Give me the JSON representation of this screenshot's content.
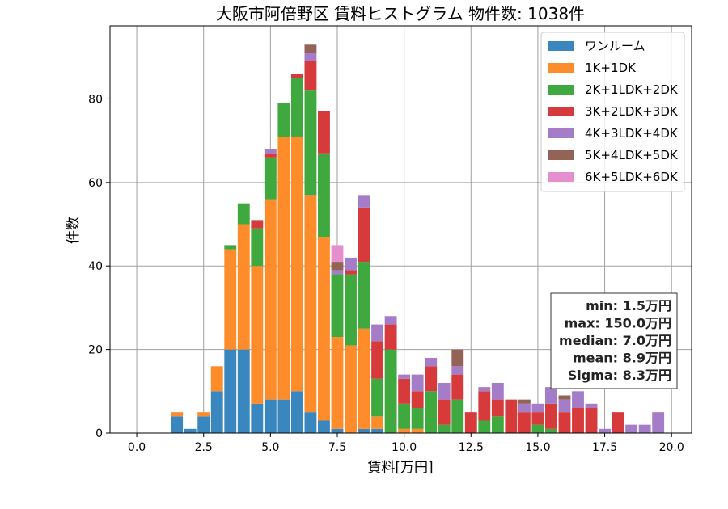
{
  "chart_data": {
    "type": "bar",
    "stacked": true,
    "title": "大阪市阿倍野区 賃料ヒストグラム 物件数: 1038件",
    "xlabel": "賃料[万円]",
    "ylabel": "件数",
    "xlim": [
      -1.0,
      20.75
    ],
    "ylim": [
      0,
      97.5
    ],
    "xticks": [
      0.0,
      2.5,
      5.0,
      7.5,
      10.0,
      12.5,
      15.0,
      17.5,
      20.0
    ],
    "xtick_labels": [
      "0.0",
      "2.5",
      "5.0",
      "7.5",
      "10.0",
      "12.5",
      "15.0",
      "17.5",
      "20.0"
    ],
    "yticks": [
      0,
      20,
      40,
      60,
      80
    ],
    "ytick_labels": [
      "0",
      "20",
      "40",
      "60",
      "80"
    ],
    "grid": true,
    "legend_position": "top-right",
    "bin_width": 0.5,
    "bar_width": 0.45,
    "x": [
      0,
      0.5,
      1,
      1.5,
      2,
      2.5,
      3,
      3.5,
      4,
      4.5,
      5,
      5.5,
      6,
      6.5,
      7,
      7.5,
      8,
      8.5,
      9,
      9.5,
      10,
      10.5,
      11,
      11.5,
      12,
      12.5,
      13,
      13.5,
      14,
      14.5,
      15,
      15.5,
      16,
      16.5,
      17,
      17.5,
      18,
      18.5,
      19,
      19.5
    ],
    "series": [
      {
        "name": "ワンルーム",
        "color": "#3a87c0",
        "values": [
          0,
          0,
          0,
          4,
          1,
          4,
          10,
          20,
          20,
          7,
          8,
          8,
          10,
          5,
          3,
          1,
          0,
          1,
          1,
          0,
          0,
          0,
          0,
          0,
          0,
          0,
          0,
          0,
          0,
          0,
          0,
          0,
          0,
          0,
          0,
          0,
          0,
          0,
          0,
          0
        ]
      },
      {
        "name": "1K+1DK",
        "color": "#ff8c2a",
        "values": [
          0,
          0,
          0,
          1,
          0,
          1,
          6,
          24,
          30,
          33,
          48,
          63,
          61,
          52,
          44,
          22,
          21,
          24,
          3,
          0,
          1,
          1,
          0,
          0,
          0,
          0,
          0,
          0,
          0,
          0,
          0,
          0,
          0,
          0,
          0,
          0,
          0,
          0,
          0,
          0
        ]
      },
      {
        "name": "2K+1LDK+2DK",
        "color": "#3fa83f",
        "values": [
          0,
          0,
          0,
          0,
          0,
          0,
          0,
          1,
          5,
          9,
          10,
          8,
          14,
          25,
          20,
          15,
          17,
          16,
          9,
          20,
          6,
          5,
          10,
          2,
          8,
          0,
          3,
          4,
          0,
          0,
          2,
          1,
          0,
          0,
          0,
          0,
          0,
          0,
          0,
          0
        ]
      },
      {
        "name": "3K+2LDK+3DK",
        "color": "#d63a3a",
        "values": [
          0,
          0,
          0,
          0,
          0,
          0,
          0,
          0,
          0,
          2,
          1,
          0,
          1,
          7,
          10,
          0,
          1,
          13,
          9,
          6,
          6,
          4,
          6,
          6,
          6,
          5,
          7,
          4,
          8,
          5,
          3,
          6,
          5,
          6,
          6,
          0,
          5,
          0,
          0,
          0
        ]
      },
      {
        "name": "4K+3LDK+4DK",
        "color": "#a47cc8",
        "values": [
          0,
          0,
          0,
          0,
          0,
          0,
          0,
          0,
          0,
          0,
          1,
          0,
          0,
          2,
          0,
          1,
          3,
          3,
          4,
          2,
          1,
          4,
          2,
          4,
          2,
          0,
          1,
          4,
          0,
          2,
          2,
          4,
          3,
          4,
          1,
          1,
          0,
          2,
          2,
          5
        ]
      },
      {
        "name": "5K+4LDK+5DK",
        "color": "#946358",
        "values": [
          0,
          0,
          0,
          0,
          0,
          0,
          0,
          0,
          0,
          0,
          0,
          0,
          0,
          2,
          0,
          2,
          0,
          0,
          0,
          0,
          0,
          0,
          0,
          0,
          4,
          0,
          0,
          0,
          0,
          1,
          0,
          0,
          1,
          0,
          0,
          0,
          0,
          0,
          0,
          0
        ]
      },
      {
        "name": "6K+5LDK+6DK",
        "color": "#e68fcf",
        "values": [
          0,
          0,
          0,
          0,
          0,
          0,
          0,
          0,
          0,
          0,
          0,
          0,
          0,
          0,
          0,
          4,
          0,
          0,
          0,
          0,
          0,
          0,
          0,
          0,
          0,
          0,
          0,
          0,
          0,
          0,
          0,
          0,
          0,
          0,
          0,
          0,
          0,
          0,
          0,
          0
        ]
      }
    ],
    "annotations": [
      "min: 1.5万円",
      "max: 150.0万円",
      "median: 7.0万円",
      "mean: 8.9万円",
      "Sigma: 8.3万円"
    ]
  }
}
